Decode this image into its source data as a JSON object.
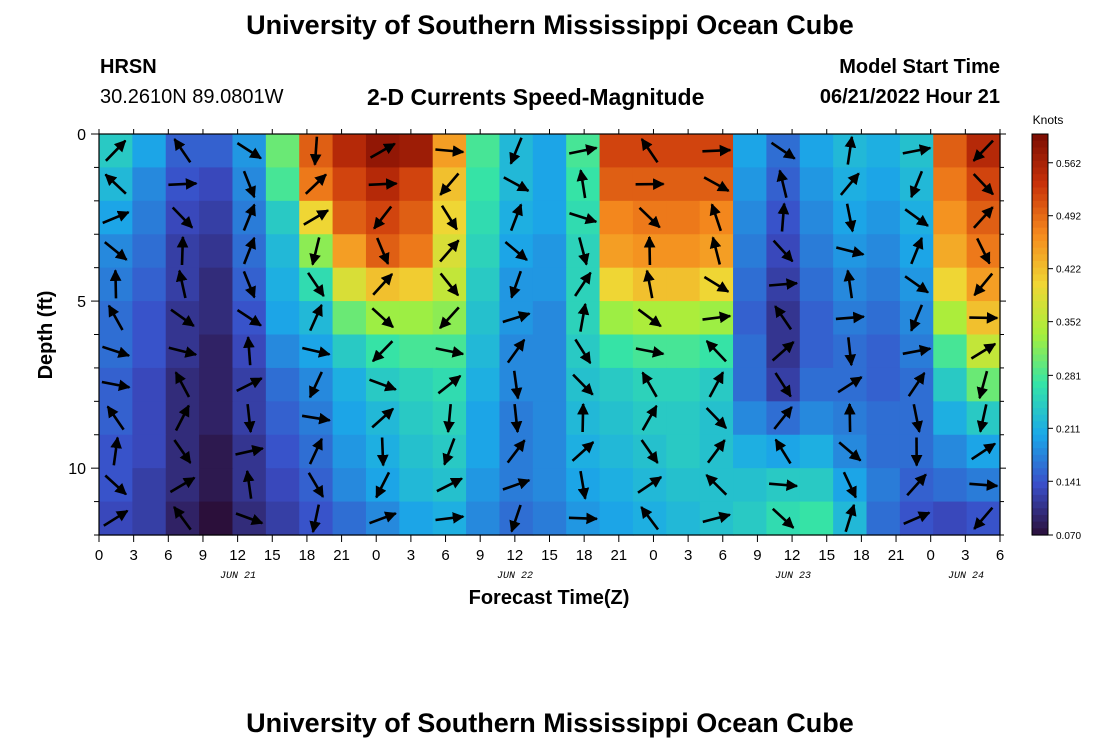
{
  "header": {
    "title": "University of Southern Mississippi Ocean Cube",
    "station": "HRSN",
    "coords": "30.2610N  89.0801W",
    "plot_title": "2-D Currents Speed-Magnitude",
    "start_label": "Model Start Time",
    "start_value": "06/21/2022 Hour 21"
  },
  "footer": {
    "title": "University of Southern Mississippi Ocean Cube"
  },
  "chart_data": {
    "type": "heatmap",
    "title": "2-D Currents Speed-Magnitude",
    "xlabel": "Forecast Time(Z)",
    "ylabel": "Depth (ft)",
    "x_tick_labels": [
      "0",
      "3",
      "6",
      "9",
      "12",
      "15",
      "18",
      "21",
      "0",
      "3",
      "6",
      "9",
      "12",
      "15",
      "18",
      "21",
      "0",
      "3",
      "6",
      "9",
      "12",
      "15",
      "18",
      "21",
      "0",
      "3",
      "6"
    ],
    "date_labels": [
      "JUN 21",
      "JUN 22",
      "JUN 23",
      "JUN 24"
    ],
    "y_tick_labels": [
      "0",
      "5",
      "10"
    ],
    "ylim": [
      0,
      12
    ],
    "colorbar": {
      "label": "Knots",
      "ticks": [
        "0.070",
        "0.141",
        "0.211",
        "0.281",
        "0.352",
        "0.422",
        "0.492",
        "0.562"
      ],
      "range": [
        0.07,
        0.6
      ],
      "colors": [
        "#2b0f3a",
        "#3a4ec8",
        "#1ba8e8",
        "#34e3a8",
        "#a6ef3c",
        "#f0d634",
        "#f58a1e",
        "#c8320a",
        "#7a0c03"
      ]
    },
    "speed_grid": [
      [
        0.24,
        0.2,
        0.15,
        0.15,
        0.19,
        0.3,
        0.5,
        0.55,
        0.58,
        0.57,
        0.45,
        0.28,
        0.22,
        0.2,
        0.28,
        0.52,
        0.52,
        0.52,
        0.52,
        0.2,
        0.16,
        0.2,
        0.22,
        0.21,
        0.23,
        0.5,
        0.55
      ],
      [
        0.22,
        0.18,
        0.14,
        0.13,
        0.18,
        0.28,
        0.48,
        0.52,
        0.55,
        0.52,
        0.42,
        0.27,
        0.22,
        0.2,
        0.27,
        0.5,
        0.5,
        0.5,
        0.5,
        0.19,
        0.15,
        0.19,
        0.21,
        0.2,
        0.22,
        0.48,
        0.52
      ],
      [
        0.2,
        0.17,
        0.13,
        0.12,
        0.17,
        0.24,
        0.4,
        0.5,
        0.52,
        0.5,
        0.4,
        0.26,
        0.21,
        0.2,
        0.26,
        0.47,
        0.48,
        0.48,
        0.47,
        0.18,
        0.14,
        0.18,
        0.2,
        0.19,
        0.21,
        0.46,
        0.5
      ],
      [
        0.18,
        0.16,
        0.12,
        0.11,
        0.16,
        0.22,
        0.32,
        0.45,
        0.5,
        0.48,
        0.38,
        0.25,
        0.2,
        0.19,
        0.25,
        0.45,
        0.46,
        0.46,
        0.45,
        0.17,
        0.13,
        0.17,
        0.19,
        0.18,
        0.2,
        0.44,
        0.48
      ],
      [
        0.17,
        0.15,
        0.12,
        0.1,
        0.15,
        0.21,
        0.26,
        0.38,
        0.42,
        0.41,
        0.36,
        0.24,
        0.19,
        0.19,
        0.25,
        0.4,
        0.42,
        0.42,
        0.4,
        0.16,
        0.12,
        0.16,
        0.18,
        0.17,
        0.19,
        0.4,
        0.45
      ],
      [
        0.16,
        0.14,
        0.11,
        0.1,
        0.14,
        0.2,
        0.22,
        0.3,
        0.33,
        0.33,
        0.32,
        0.23,
        0.19,
        0.18,
        0.25,
        0.33,
        0.34,
        0.34,
        0.33,
        0.15,
        0.11,
        0.15,
        0.17,
        0.16,
        0.18,
        0.34,
        0.42
      ],
      [
        0.16,
        0.14,
        0.11,
        0.09,
        0.13,
        0.18,
        0.2,
        0.24,
        0.27,
        0.28,
        0.28,
        0.22,
        0.18,
        0.18,
        0.24,
        0.27,
        0.28,
        0.28,
        0.27,
        0.16,
        0.11,
        0.15,
        0.16,
        0.15,
        0.17,
        0.28,
        0.36
      ],
      [
        0.15,
        0.13,
        0.1,
        0.09,
        0.12,
        0.16,
        0.18,
        0.21,
        0.24,
        0.25,
        0.26,
        0.21,
        0.18,
        0.18,
        0.23,
        0.24,
        0.25,
        0.25,
        0.24,
        0.16,
        0.12,
        0.16,
        0.16,
        0.15,
        0.16,
        0.24,
        0.3
      ],
      [
        0.15,
        0.13,
        0.1,
        0.09,
        0.12,
        0.15,
        0.17,
        0.2,
        0.22,
        0.24,
        0.25,
        0.2,
        0.17,
        0.18,
        0.22,
        0.23,
        0.24,
        0.24,
        0.23,
        0.18,
        0.16,
        0.18,
        0.17,
        0.16,
        0.16,
        0.21,
        0.24
      ],
      [
        0.14,
        0.13,
        0.1,
        0.08,
        0.11,
        0.14,
        0.16,
        0.19,
        0.21,
        0.23,
        0.24,
        0.2,
        0.17,
        0.18,
        0.21,
        0.22,
        0.23,
        0.24,
        0.23,
        0.21,
        0.2,
        0.21,
        0.18,
        0.16,
        0.16,
        0.18,
        0.2
      ],
      [
        0.14,
        0.12,
        0.1,
        0.08,
        0.11,
        0.13,
        0.15,
        0.18,
        0.2,
        0.22,
        0.23,
        0.19,
        0.17,
        0.18,
        0.2,
        0.21,
        0.22,
        0.23,
        0.23,
        0.23,
        0.24,
        0.24,
        0.2,
        0.17,
        0.15,
        0.16,
        0.17
      ],
      [
        0.13,
        0.12,
        0.09,
        0.07,
        0.1,
        0.12,
        0.14,
        0.16,
        0.18,
        0.2,
        0.21,
        0.18,
        0.16,
        0.17,
        0.19,
        0.2,
        0.21,
        0.22,
        0.23,
        0.24,
        0.26,
        0.27,
        0.22,
        0.16,
        0.14,
        0.13,
        0.14
      ]
    ]
  }
}
